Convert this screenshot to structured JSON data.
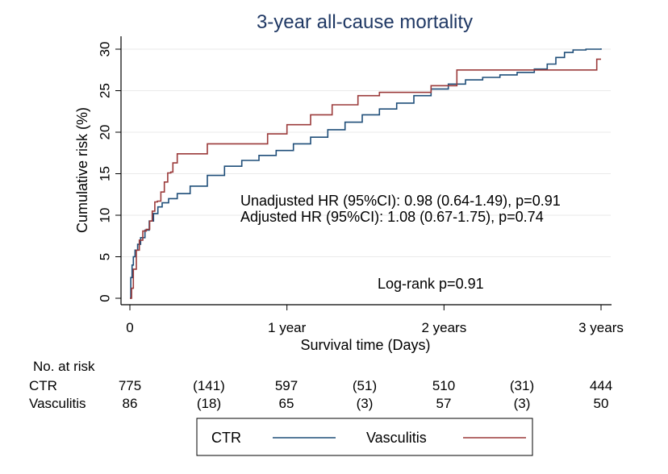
{
  "chart_data": {
    "type": "line",
    "step": true,
    "title": "3-year all-cause mortality",
    "xlabel": "Survival time (Days)",
    "ylabel": "Cumulative risk (%)",
    "xlim": [
      0,
      1095
    ],
    "ylim": [
      0,
      30
    ],
    "x_ticks": [
      {
        "value": 0,
        "label": "0"
      },
      {
        "value": 365,
        "label": "1 year"
      },
      {
        "value": 730,
        "label": "2 years"
      },
      {
        "value": 1095,
        "label": "3 years"
      }
    ],
    "y_ticks": [
      {
        "value": 0,
        "label": "0"
      },
      {
        "value": 5,
        "label": "5"
      },
      {
        "value": 10,
        "label": "10"
      },
      {
        "value": 15,
        "label": "15"
      },
      {
        "value": 20,
        "label": "20"
      },
      {
        "value": 25,
        "label": "25"
      },
      {
        "value": 30,
        "label": "30"
      }
    ],
    "grid": true,
    "series": [
      {
        "name": "CTR",
        "color": "#1f4e79",
        "x": [
          0,
          2,
          5,
          8,
          12,
          18,
          25,
          35,
          45,
          55,
          65,
          75,
          90,
          110,
          140,
          180,
          220,
          260,
          300,
          340,
          380,
          420,
          460,
          500,
          540,
          580,
          620,
          660,
          700,
          740,
          780,
          820,
          860,
          900,
          940,
          970,
          990,
          1010,
          1030,
          1060,
          1095
        ],
        "values": [
          0,
          2.5,
          4.0,
          5.0,
          5.8,
          6.5,
          7.3,
          8.2,
          9.3,
          10.2,
          11.0,
          11.5,
          12.0,
          12.6,
          13.5,
          14.8,
          15.9,
          16.6,
          17.2,
          17.8,
          18.6,
          19.4,
          20.3,
          21.2,
          22.1,
          22.8,
          23.5,
          24.4,
          25.2,
          25.8,
          26.3,
          26.6,
          26.9,
          27.2,
          27.6,
          28.2,
          29.0,
          29.6,
          29.9,
          30.0,
          30.1
        ]
      },
      {
        "name": "Vasculitis",
        "color": "#9b3a3a",
        "x": [
          0,
          4,
          8,
          15,
          22,
          30,
          38,
          46,
          52,
          58,
          64,
          72,
          80,
          88,
          95,
          100,
          110,
          120,
          130,
          180,
          260,
          320,
          365,
          420,
          470,
          530,
          580,
          700,
          760,
          1060,
          1085,
          1095
        ],
        "values": [
          0,
          1.2,
          3.5,
          5.8,
          7.0,
          8.1,
          8.3,
          9.3,
          10.5,
          11.6,
          11.7,
          12.8,
          14.0,
          15.1,
          15.2,
          16.3,
          17.4,
          17.4,
          17.4,
          18.6,
          18.6,
          19.8,
          20.9,
          22.1,
          23.3,
          24.4,
          24.8,
          25.6,
          27.5,
          27.5,
          28.8,
          28.8
        ]
      }
    ],
    "annotations": [
      "Unadjusted HR (95%CI): 0.98 (0.64-1.49), p=0.91",
      "Adjusted HR (95%CI): 1.08 (0.67-1.75), p=0.74",
      "Log-rank p=0.91"
    ],
    "risk_table": {
      "title": "No. at risk",
      "rows": [
        {
          "label": "CTR",
          "values": [
            "775",
            "(141)",
            "597",
            "(51)",
            "510",
            "(31)",
            "444"
          ]
        },
        {
          "label": "Vasculitis",
          "values": [
            "86",
            "(18)",
            "65",
            "(3)",
            "57",
            "(3)",
            "50"
          ]
        }
      ]
    },
    "legend": {
      "placement": "bottom",
      "entries": [
        "CTR",
        "Vasculitis"
      ]
    }
  }
}
